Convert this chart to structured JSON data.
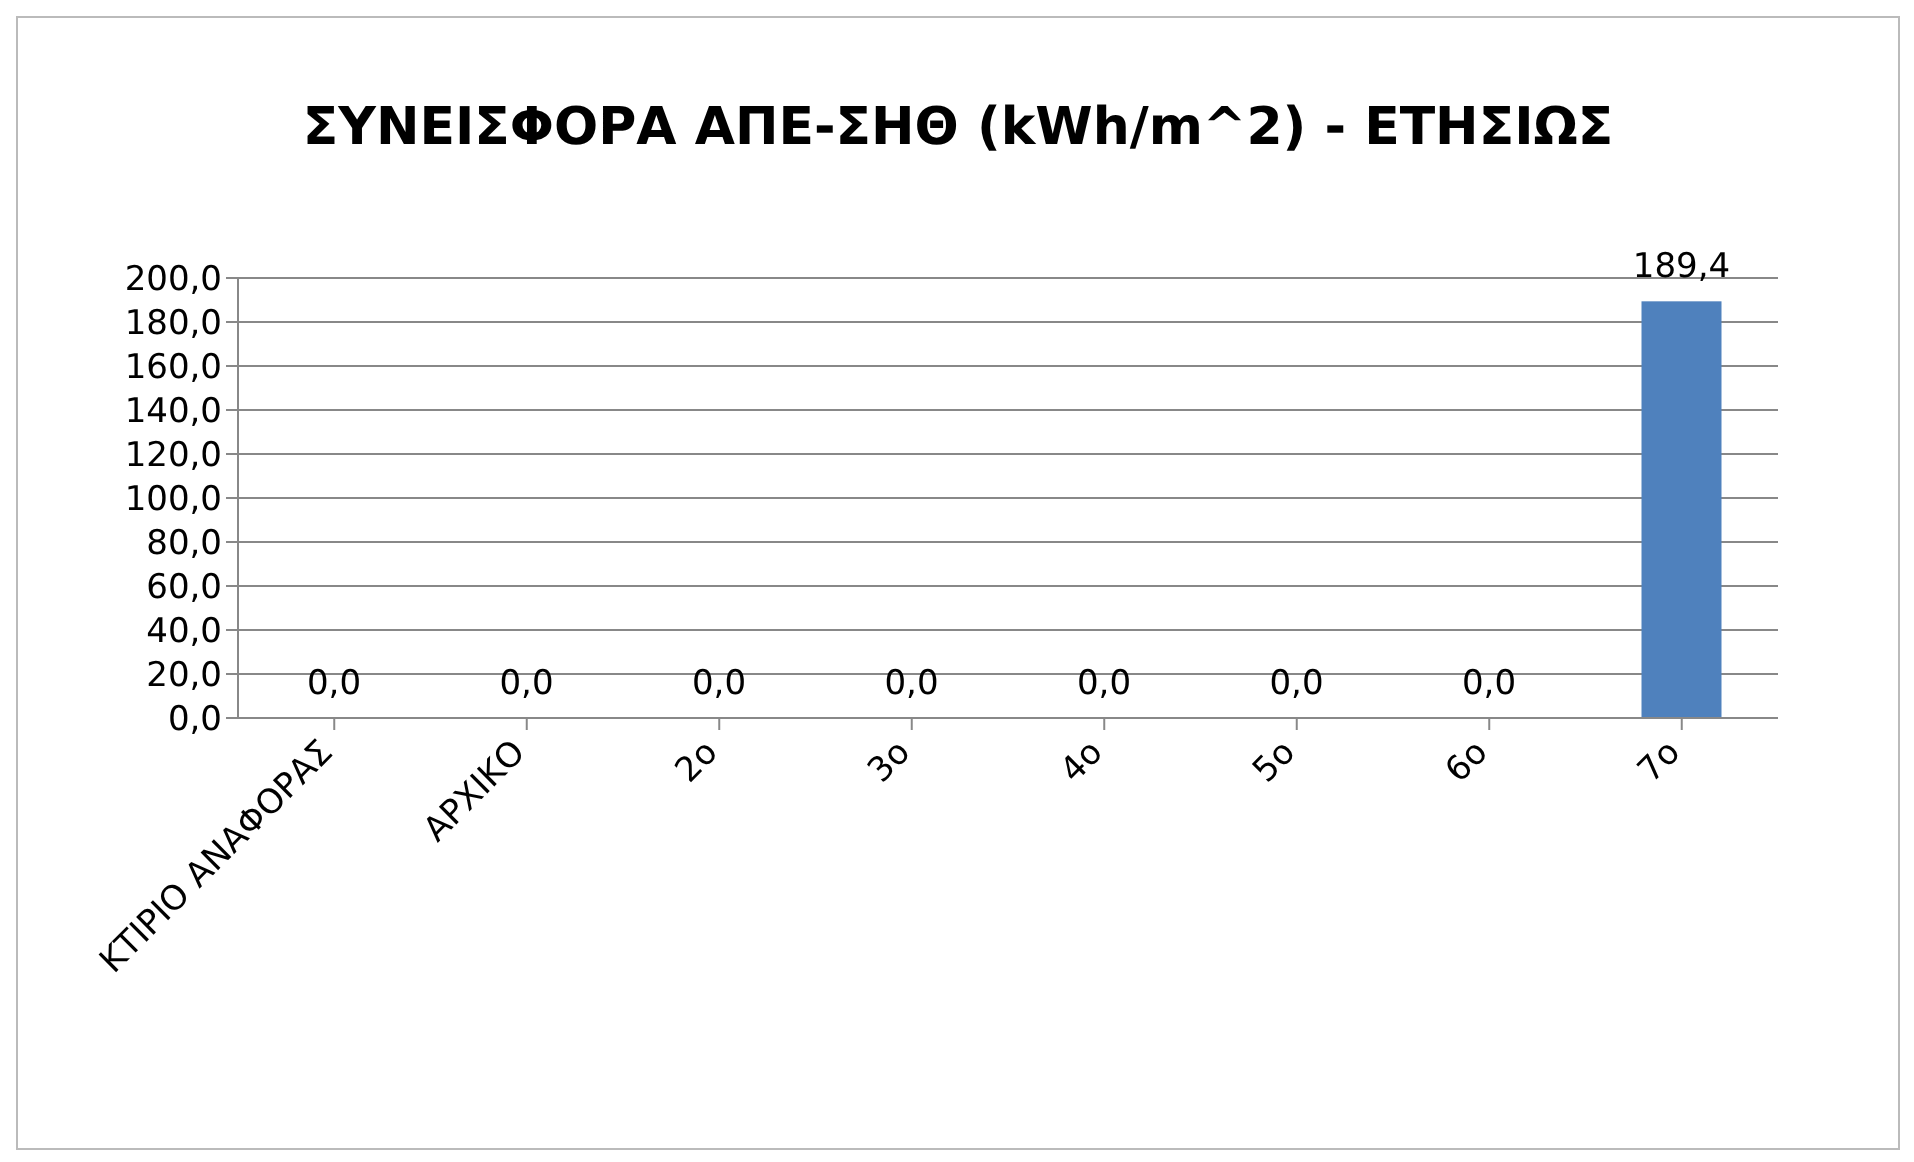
{
  "chart_data": {
    "type": "bar",
    "title": "ΣΥΝΕΙΣΦΟΡΑ ΑΠΕ-ΣΗΘ (kWh/m^2) - ΕΤΗΣΙΩΣ",
    "categories": [
      "ΚΤΙΡΙΟ ΑΝΑΦΟΡΑΣ",
      "ΑΡΧΙΚΟ",
      "2ο",
      "3ο",
      "4ο",
      "5ο",
      "6ο",
      "7ο"
    ],
    "values": [
      0,
      0,
      0,
      0,
      0,
      0,
      0,
      189.4
    ],
    "colors": [
      "#c00000",
      "#e46c0a",
      "#4f81bd",
      "#4f81bd",
      "#4f81bd",
      "#4f81bd",
      "#4f81bd",
      "#4f81bd"
    ],
    "value_labels": [
      "0,0",
      "0,0",
      "0,0",
      "0,0",
      "0,0",
      "0,0",
      "0,0",
      "189,4"
    ],
    "ylim": [
      0,
      200
    ],
    "yticks": [
      {
        "value": 0,
        "label": "0,0"
      },
      {
        "value": 20,
        "label": "20,0"
      },
      {
        "value": 40,
        "label": "40,0"
      },
      {
        "value": 60,
        "label": "60,0"
      },
      {
        "value": 80,
        "label": "80,0"
      },
      {
        "value": 100,
        "label": "100,0"
      },
      {
        "value": 120,
        "label": "120,0"
      },
      {
        "value": 140,
        "label": "140,0"
      },
      {
        "value": 160,
        "label": "160,0"
      },
      {
        "value": 180,
        "label": "180,0"
      },
      {
        "value": 200,
        "label": "200,0"
      }
    ],
    "grid": "y"
  }
}
